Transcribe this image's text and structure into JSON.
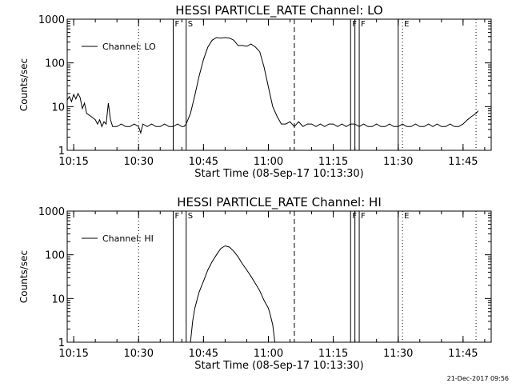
{
  "footer": {
    "timestamp": "21-Dec-2017 09:56"
  },
  "chart_data": [
    {
      "type": "line",
      "title": "HESSI PARTICLE_RATE Channel: LO",
      "xlabel": "Start Time (08-Sep-17 10:13:30)",
      "ylabel": "Counts/sec",
      "yscale": "log",
      "ylim": [
        1,
        1000
      ],
      "xlim": [
        "10:13:30",
        "11:51:30"
      ],
      "xticks": [
        "10:15",
        "10:30",
        "10:45",
        "11:00",
        "11:15",
        "11:30",
        "11:45"
      ],
      "yticks": [
        "1",
        "10",
        "100",
        "1000"
      ],
      "legend": {
        "position": "top-left",
        "entries": [
          "Channel: LO"
        ]
      },
      "series": [
        {
          "name": "Channel: LO",
          "x": [
            "10:13:30",
            "10:14:00",
            "10:14:30",
            "10:15:00",
            "10:15:30",
            "10:16:00",
            "10:16:30",
            "10:17:00",
            "10:17:30",
            "10:18:00",
            "10:19:00",
            "10:20:00",
            "10:20:30",
            "10:21:00",
            "10:21:30",
            "10:22:00",
            "10:22:30",
            "10:23:00",
            "10:23:30",
            "10:24:00",
            "10:25:00",
            "10:26:00",
            "10:27:00",
            "10:28:00",
            "10:29:00",
            "10:30:00",
            "10:30:30",
            "10:31:00",
            "10:32:00",
            "10:33:00",
            "10:34:00",
            "10:35:00",
            "10:36:00",
            "10:37:00",
            "10:38:00",
            "10:39:00",
            "10:40:00",
            "10:40:30",
            "10:41:00",
            "10:42:00",
            "10:43:00",
            "10:44:00",
            "10:45:00",
            "10:46:00",
            "10:47:00",
            "10:48:00",
            "10:49:00",
            "10:50:00",
            "10:51:00",
            "10:52:00",
            "10:53:00",
            "10:54:00",
            "10:55:00",
            "10:56:00",
            "10:57:00",
            "10:58:00",
            "10:59:00",
            "11:00:00",
            "11:01:00",
            "11:02:00",
            "11:03:00",
            "11:04:00",
            "11:05:00",
            "11:06:00",
            "11:07:00",
            "11:08:00",
            "11:09:00",
            "11:10:00",
            "11:11:00",
            "11:12:00",
            "11:13:00",
            "11:14:00",
            "11:15:00",
            "11:16:00",
            "11:17:00",
            "11:18:00",
            "11:19:00",
            "11:20:00",
            "11:21:00",
            "11:22:00",
            "11:23:00",
            "11:24:00",
            "11:25:00",
            "11:26:00",
            "11:27:00",
            "11:28:00",
            "11:29:00",
            "11:30:00",
            "11:31:00",
            "11:32:00",
            "11:33:00",
            "11:34:00",
            "11:35:00",
            "11:36:00",
            "11:37:00",
            "11:38:00",
            "11:39:00",
            "11:40:00",
            "11:41:00",
            "11:42:00",
            "11:43:00",
            "11:44:00",
            "11:45:00",
            "11:46:00",
            "11:47:00",
            "11:48:00",
            "11:48:30"
          ],
          "values": [
            14,
            17,
            13,
            19,
            15,
            20,
            16,
            9,
            12,
            7,
            6,
            5,
            4,
            5,
            3.5,
            4.5,
            4,
            12,
            5,
            3.5,
            3.5,
            4,
            3.5,
            3.5,
            4,
            3.5,
            2.5,
            4,
            3.5,
            4,
            3.5,
            3.5,
            4,
            3.5,
            3.5,
            4,
            3.5,
            3.5,
            4,
            7,
            18,
            50,
            120,
            230,
            330,
            380,
            370,
            380,
            370,
            330,
            250,
            250,
            240,
            270,
            230,
            180,
            80,
            28,
            10,
            6,
            4,
            4,
            4.5,
            3.5,
            4.5,
            3.5,
            4,
            4,
            3.5,
            4,
            3.5,
            4,
            4,
            3.5,
            4,
            3.5,
            4,
            4,
            3.5,
            4,
            3.5,
            3.5,
            4,
            3.5,
            3.5,
            4,
            3.5,
            3.5,
            4,
            3.5,
            3.5,
            4,
            3.5,
            3.5,
            4,
            3.5,
            4,
            3.5,
            3.5,
            4,
            3.5,
            3.5,
            4,
            5,
            6,
            7,
            8
          ]
        }
      ],
      "markers": [
        {
          "time": "10:30",
          "style": "dotted",
          "label": ""
        },
        {
          "time": "10:38",
          "style": "solid",
          "label": "F"
        },
        {
          "time": "10:41",
          "style": "solid",
          "label": "S"
        },
        {
          "time": "11:06",
          "style": "dashed",
          "label": ""
        },
        {
          "time": "11:19",
          "style": "solid",
          "label": "F"
        },
        {
          "time": "11:20",
          "style": "solid",
          "label": ""
        },
        {
          "time": "11:21",
          "style": "solid",
          "label": "F"
        },
        {
          "time": "11:30",
          "style": "solid",
          "label": ""
        },
        {
          "time": "11:31",
          "style": "dotted",
          "label": "E"
        },
        {
          "time": "11:48",
          "style": "dotted",
          "label": ""
        }
      ]
    },
    {
      "type": "line",
      "title": "HESSI PARTICLE_RATE Channel: HI",
      "xlabel": "Start Time (08-Sep-17 10:13:30)",
      "ylabel": "Counts/sec",
      "yscale": "log",
      "ylim": [
        1,
        1000
      ],
      "xlim": [
        "10:13:30",
        "11:51:30"
      ],
      "xticks": [
        "10:15",
        "10:30",
        "10:45",
        "11:00",
        "11:15",
        "11:30",
        "11:45"
      ],
      "yticks": [
        "1",
        "10",
        "100",
        "1000"
      ],
      "legend": {
        "position": "top-left",
        "entries": [
          "Channel: HI"
        ]
      },
      "series": [
        {
          "name": "Channel: HI",
          "x": [
            "10:42:00",
            "10:42:30",
            "10:43:00",
            "10:44:00",
            "10:45:00",
            "10:46:00",
            "10:47:00",
            "10:48:00",
            "10:49:00",
            "10:50:00",
            "10:51:00",
            "10:52:00",
            "10:53:00",
            "10:54:00",
            "10:55:00",
            "10:56:00",
            "10:57:00",
            "10:58:00",
            "10:59:00",
            "11:00:00",
            "11:00:30",
            "11:01:00",
            "11:01:30"
          ],
          "values": [
            1,
            3,
            6,
            14,
            25,
            45,
            70,
            100,
            140,
            160,
            150,
            120,
            90,
            62,
            45,
            32,
            22,
            15,
            9,
            6,
            4,
            2.5,
            1
          ]
        }
      ],
      "markers": [
        {
          "time": "10:30",
          "style": "dotted",
          "label": ""
        },
        {
          "time": "10:38",
          "style": "solid",
          "label": "F"
        },
        {
          "time": "10:41",
          "style": "solid",
          "label": "S"
        },
        {
          "time": "11:06",
          "style": "dashed",
          "label": ""
        },
        {
          "time": "11:19",
          "style": "solid",
          "label": "F"
        },
        {
          "time": "11:20",
          "style": "solid",
          "label": ""
        },
        {
          "time": "11:21",
          "style": "solid",
          "label": "F"
        },
        {
          "time": "11:30",
          "style": "solid",
          "label": ""
        },
        {
          "time": "11:31",
          "style": "dotted",
          "label": "E"
        },
        {
          "time": "11:48",
          "style": "dotted",
          "label": ""
        }
      ]
    }
  ]
}
